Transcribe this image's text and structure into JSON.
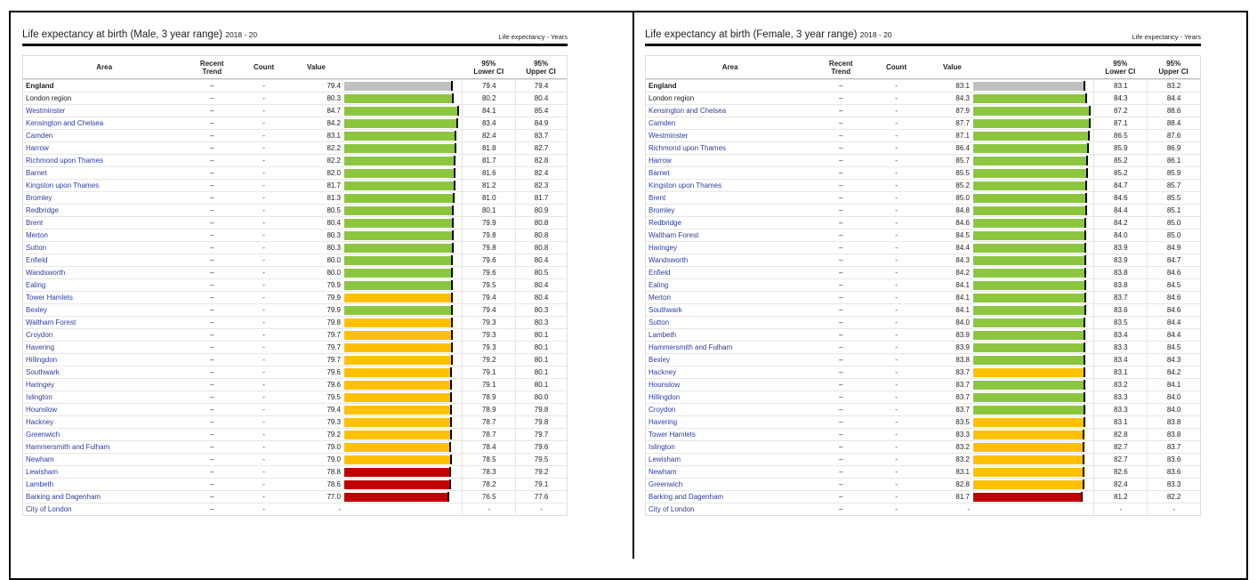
{
  "panels": [
    {
      "title": "Life expectancy at birth (Male, 3 year range)",
      "period": "2018 - 20",
      "unit": "Life expectancy - Years",
      "headers": [
        [
          "Area"
        ],
        [
          "Recent",
          "Trend"
        ],
        [
          "Count"
        ],
        [
          "Value"
        ],
        [
          "95%",
          "Lower CI"
        ],
        [
          "95%",
          "Upper CI"
        ]
      ],
      "rows": [
        [
          "England",
          "–",
          "-",
          "79.4",
          "79.4",
          "79.4",
          "#c0c0c0"
        ],
        [
          "London region",
          "–",
          "-",
          "80.3",
          "80.2",
          "80.4",
          "#8cc63f"
        ],
        [
          "Westminster",
          "–",
          "-",
          "84.7",
          "84.1",
          "85.4",
          "#8cc63f"
        ],
        [
          "Kensington and Chelsea",
          "–",
          "-",
          "84.2",
          "83.4",
          "84.9",
          "#8cc63f"
        ],
        [
          "Camden",
          "–",
          "-",
          "83.1",
          "82.4",
          "83.7",
          "#8cc63f"
        ],
        [
          "Harrow",
          "–",
          "-",
          "82.2",
          "81.8",
          "82.7",
          "#8cc63f"
        ],
        [
          "Richmond upon Thames",
          "–",
          "-",
          "82.2",
          "81.7",
          "82.8",
          "#8cc63f"
        ],
        [
          "Barnet",
          "–",
          "-",
          "82.0",
          "81.6",
          "82.4",
          "#8cc63f"
        ],
        [
          "Kingston upon Thames",
          "–",
          "-",
          "81.7",
          "81.2",
          "82.3",
          "#8cc63f"
        ],
        [
          "Bromley",
          "–",
          "-",
          "81.3",
          "81.0",
          "81.7",
          "#8cc63f"
        ],
        [
          "Redbridge",
          "–",
          "-",
          "80.5",
          "80.1",
          "80.9",
          "#8cc63f"
        ],
        [
          "Brent",
          "–",
          "-",
          "80.4",
          "79.9",
          "80.8",
          "#8cc63f"
        ],
        [
          "Merton",
          "–",
          "-",
          "80.3",
          "79.8",
          "80.8",
          "#8cc63f"
        ],
        [
          "Sutton",
          "–",
          "-",
          "80.3",
          "79.8",
          "80.8",
          "#8cc63f"
        ],
        [
          "Enfield",
          "–",
          "-",
          "80.0",
          "79.6",
          "80.4",
          "#8cc63f"
        ],
        [
          "Wandsworth",
          "–",
          "-",
          "80.0",
          "79.6",
          "80.5",
          "#8cc63f"
        ],
        [
          "Ealing",
          "–",
          "-",
          "79.9",
          "79.5",
          "80.4",
          "#8cc63f"
        ],
        [
          "Tower Hamlets",
          "–",
          "-",
          "79.9",
          "79.4",
          "80.4",
          "#ffc000"
        ],
        [
          "Bexley",
          "–",
          "-",
          "79.9",
          "79.4",
          "80.3",
          "#8cc63f"
        ],
        [
          "Waltham Forest",
          "–",
          "-",
          "79.8",
          "79.3",
          "80.3",
          "#ffc000"
        ],
        [
          "Croydon",
          "–",
          "-",
          "79.7",
          "79.3",
          "80.1",
          "#ffc000"
        ],
        [
          "Havering",
          "–",
          "-",
          "79.7",
          "79.3",
          "80.1",
          "#ffc000"
        ],
        [
          "Hillingdon",
          "–",
          "-",
          "79.7",
          "79.2",
          "80.1",
          "#ffc000"
        ],
        [
          "Southwark",
          "–",
          "-",
          "79.6",
          "79.1",
          "80.1",
          "#ffc000"
        ],
        [
          "Haringey",
          "–",
          "-",
          "79.6",
          "79.1",
          "80.1",
          "#ffc000"
        ],
        [
          "Islington",
          "–",
          "-",
          "79.5",
          "78.9",
          "80.0",
          "#ffc000"
        ],
        [
          "Hounslow",
          "–",
          "-",
          "79.4",
          "78.9",
          "79.8",
          "#ffc000"
        ],
        [
          "Hackney",
          "–",
          "-",
          "79.3",
          "78.7",
          "79.8",
          "#ffc000"
        ],
        [
          "Greenwich",
          "–",
          "-",
          "79.2",
          "78.7",
          "79.7",
          "#ffc000"
        ],
        [
          "Hammersmith and Fulham",
          "–",
          "-",
          "79.0",
          "78.4",
          "79.6",
          "#ffc000"
        ],
        [
          "Newham",
          "–",
          "-",
          "79.0",
          "78.5",
          "79.5",
          "#ffc000"
        ],
        [
          "Lewisham",
          "–",
          "-",
          "78.8",
          "78.3",
          "79.2",
          "#c00000"
        ],
        [
          "Lambeth",
          "–",
          "-",
          "78.6",
          "78.2",
          "79.1",
          "#c00000"
        ],
        [
          "Barking and Dagenham",
          "–",
          "-",
          "77.0",
          "76.5",
          "77.6",
          "#c00000"
        ],
        [
          "City of London",
          "–",
          "-",
          "-",
          "-",
          "-",
          null
        ]
      ]
    },
    {
      "title": "Life expectancy at birth (Female, 3 year range)",
      "period": "2018 - 20",
      "unit": "Life expectancy - Years",
      "headers": [
        [
          "Area"
        ],
        [
          "Recent",
          "Trend"
        ],
        [
          "Count"
        ],
        [
          "Value"
        ],
        [
          "95%",
          "Lower CI"
        ],
        [
          "95%",
          "Upper CI"
        ]
      ],
      "rows": [
        [
          "England",
          "–",
          "-",
          "83.1",
          "83.1",
          "83.2",
          "#c0c0c0"
        ],
        [
          "London region",
          "–",
          "-",
          "84.3",
          "84.3",
          "84.4",
          "#8cc63f"
        ],
        [
          "Kensington and Chelsea",
          "–",
          "-",
          "87.9",
          "87.2",
          "88.6",
          "#8cc63f"
        ],
        [
          "Camden",
          "–",
          "-",
          "87.7",
          "87.1",
          "88.4",
          "#8cc63f"
        ],
        [
          "Westminster",
          "–",
          "-",
          "87.1",
          "86.5",
          "87.6",
          "#8cc63f"
        ],
        [
          "Richmond upon Thames",
          "–",
          "-",
          "86.4",
          "85.9",
          "86.9",
          "#8cc63f"
        ],
        [
          "Harrow",
          "–",
          "-",
          "85.7",
          "85.2",
          "86.1",
          "#8cc63f"
        ],
        [
          "Barnet",
          "–",
          "-",
          "85.5",
          "85.2",
          "85.9",
          "#8cc63f"
        ],
        [
          "Kingston upon Thames",
          "–",
          "-",
          "85.2",
          "84.7",
          "85.7",
          "#8cc63f"
        ],
        [
          "Brent",
          "–",
          "-",
          "85.0",
          "84.6",
          "85.5",
          "#8cc63f"
        ],
        [
          "Bromley",
          "–",
          "-",
          "84.8",
          "84.4",
          "85.1",
          "#8cc63f"
        ],
        [
          "Redbridge",
          "–",
          "-",
          "84.6",
          "84.2",
          "85.0",
          "#8cc63f"
        ],
        [
          "Waltham Forest",
          "–",
          "-",
          "84.5",
          "84.0",
          "85.0",
          "#8cc63f"
        ],
        [
          "Haringey",
          "–",
          "-",
          "84.4",
          "83.9",
          "84.9",
          "#8cc63f"
        ],
        [
          "Wandsworth",
          "–",
          "-",
          "84.3",
          "83.9",
          "84.7",
          "#8cc63f"
        ],
        [
          "Enfield",
          "–",
          "-",
          "84.2",
          "83.8",
          "84.6",
          "#8cc63f"
        ],
        [
          "Ealing",
          "–",
          "-",
          "84.1",
          "83.8",
          "84.5",
          "#8cc63f"
        ],
        [
          "Merton",
          "–",
          "-",
          "84.1",
          "83.7",
          "84.6",
          "#8cc63f"
        ],
        [
          "Southwark",
          "–",
          "-",
          "84.1",
          "83.6",
          "84.6",
          "#8cc63f"
        ],
        [
          "Sutton",
          "–",
          "-",
          "84.0",
          "83.5",
          "84.4",
          "#8cc63f"
        ],
        [
          "Lambeth",
          "–",
          "-",
          "83.9",
          "83.4",
          "84.4",
          "#8cc63f"
        ],
        [
          "Hammersmith and Fulham",
          "–",
          "-",
          "83.9",
          "83.3",
          "84.5",
          "#8cc63f"
        ],
        [
          "Bexley",
          "–",
          "-",
          "83.8",
          "83.4",
          "84.3",
          "#8cc63f"
        ],
        [
          "Hackney",
          "–",
          "-",
          "83.7",
          "83.1",
          "84.2",
          "#ffc000"
        ],
        [
          "Hounslow",
          "–",
          "-",
          "83.7",
          "83.2",
          "84.1",
          "#8cc63f"
        ],
        [
          "Hillingdon",
          "–",
          "-",
          "83.7",
          "83.3",
          "84.0",
          "#8cc63f"
        ],
        [
          "Croydon",
          "–",
          "-",
          "83.7",
          "83.3",
          "84.0",
          "#8cc63f"
        ],
        [
          "Havering",
          "–",
          "-",
          "83.5",
          "83.1",
          "83.8",
          "#ffc000"
        ],
        [
          "Tower Hamlets",
          "–",
          "-",
          "83.3",
          "82.8",
          "83.8",
          "#ffc000"
        ],
        [
          "Islington",
          "–",
          "-",
          "83.2",
          "82.7",
          "83.7",
          "#ffc000"
        ],
        [
          "Lewisham",
          "–",
          "-",
          "83.2",
          "82.7",
          "83.6",
          "#ffc000"
        ],
        [
          "Newham",
          "–",
          "-",
          "83.1",
          "82.6",
          "83.6",
          "#ffc000"
        ],
        [
          "Greenwich",
          "–",
          "-",
          "82.8",
          "82.4",
          "83.3",
          "#ffc000"
        ],
        [
          "Barking and Dagenham",
          "–",
          "-",
          "81.7",
          "81.2",
          "82.2",
          "#c00000"
        ],
        [
          "City of London",
          "–",
          "-",
          "-",
          "-",
          "-",
          null
        ]
      ]
    }
  ]
}
